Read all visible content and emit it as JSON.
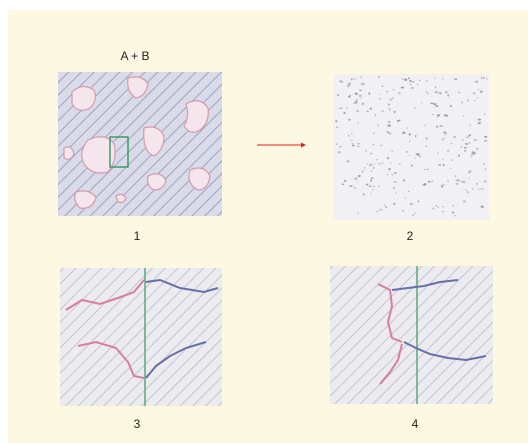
{
  "figure": {
    "heading": "A + B",
    "panel_labels": [
      "1",
      "2",
      "3",
      "4"
    ]
  }
}
